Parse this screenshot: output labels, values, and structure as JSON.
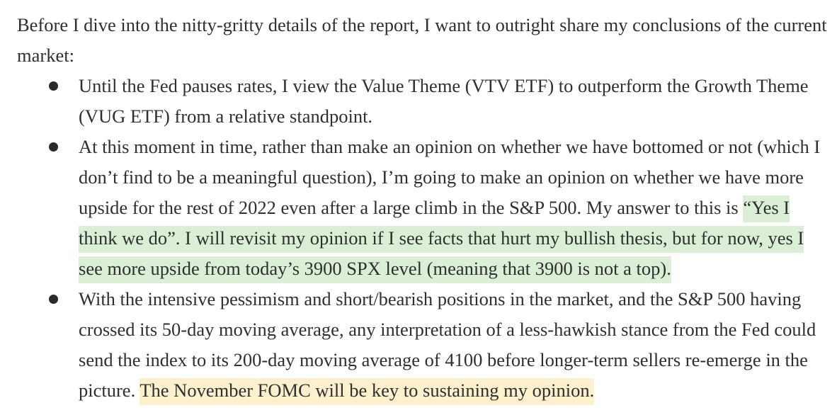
{
  "intro": "Before I dive into the nitty-gritty details of the report, I want to outright share my conclusions of the current market:",
  "bullets": [
    {
      "text": "Until the Fed pauses rates, I view the Value Theme (VTV ETF) to outperform the Growth Theme (VUG ETF) from a relative standpoint."
    },
    {
      "text": "At this moment in time, rather than make an opinion on whether we have bottomed or not (which I don’t find to be a meaningful question), I’m going to make an opinion on whether we have more upside for the rest of 2022 even after a large climb in the S&P 500. My answer to this is ",
      "highlight": "“Yes I think we do”. I will revisit my opinion if I see facts that hurt my bullish thesis, but for now, yes I see more upside from today’s 3900 SPX level (meaning that 3900 is not a top)."
    },
    {
      "text": "With the intensive pessimism and short/bearish positions in the market, and the S&P 500 having crossed its 50-day moving average, any interpretation of a less-hawkish stance from the Fed could send the index to its 200-day moving average of 4100 before longer-term sellers re-emerge in the picture. ",
      "highlight": "The November FOMC will be key to sustaining my opinion."
    }
  ],
  "colors": {
    "text": "#2f2f2f",
    "highlight_green": "#dbeed6",
    "highlight_yellow": "#fdf0cd",
    "bullet": "#2a2a2a"
  },
  "icons": {
    "bullet": "filled-circle"
  }
}
